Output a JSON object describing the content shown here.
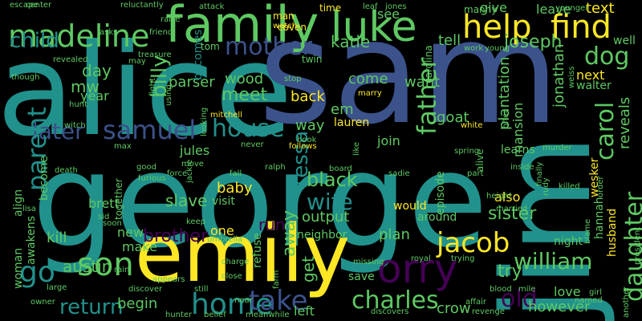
{
  "wordcloud": {
    "background": "#000000",
    "palette": [
      "#440154",
      "#3b528b",
      "#21918c",
      "#5ec962",
      "#fde725",
      "#2a788e",
      "#35b779"
    ],
    "words": [
      {
        "text": "alice"
      },
      {
        "text": "sam"
      },
      {
        "text": "george"
      },
      {
        "text": "family"
      },
      {
        "text": "emily"
      },
      {
        "text": "jim"
      },
      {
        "text": "luke"
      },
      {
        "text": "help"
      },
      {
        "text": "find"
      },
      {
        "text": "madeline"
      },
      {
        "text": "child"
      },
      {
        "text": "mother"
      },
      {
        "text": "dog"
      },
      {
        "text": "joseph"
      },
      {
        "text": "katie"
      },
      {
        "text": "billy"
      },
      {
        "text": "samuel"
      },
      {
        "text": "later"
      },
      {
        "text": "house"
      },
      {
        "text": "father"
      },
      {
        "text": "daughter"
      },
      {
        "text": "carol"
      },
      {
        "text": "son"
      },
      {
        "text": "home"
      },
      {
        "text": "take"
      },
      {
        "text": "orry"
      },
      {
        "text": "charles"
      },
      {
        "text": "jacob"
      },
      {
        "text": "william"
      },
      {
        "text": "old"
      },
      {
        "text": "return"
      },
      {
        "text": "parent"
      },
      {
        "text": "wife"
      },
      {
        "text": "tessa"
      },
      {
        "text": "black"
      },
      {
        "text": "go"
      },
      {
        "text": "brother"
      },
      {
        "text": "sister"
      },
      {
        "text": "try"
      },
      {
        "text": "text"
      },
      {
        "text": "give"
      },
      {
        "text": "see"
      },
      {
        "text": "tell"
      },
      {
        "text": "leave"
      },
      {
        "text": "next"
      },
      {
        "text": "back"
      },
      {
        "text": "meet"
      },
      {
        "text": "wood"
      },
      {
        "text": "parser"
      },
      {
        "text": "becomes"
      },
      {
        "text": "jonathan"
      },
      {
        "text": "plantation"
      },
      {
        "text": "reveals"
      },
      {
        "text": "slave"
      },
      {
        "text": "baby"
      },
      {
        "text": "kill"
      },
      {
        "text": "austin"
      },
      {
        "text": "begin"
      },
      {
        "text": "however"
      },
      {
        "text": "crow"
      },
      {
        "text": "left"
      },
      {
        "text": "away"
      },
      {
        "text": "output"
      },
      {
        "text": "neighbor"
      },
      {
        "text": "plan"
      },
      {
        "text": "would"
      },
      {
        "text": "around"
      },
      {
        "text": "episode"
      },
      {
        "text": "hannah"
      },
      {
        "text": "wesker"
      },
      {
        "text": "husband"
      },
      {
        "text": "walter"
      },
      {
        "text": "mansion"
      },
      {
        "text": "lauren"
      },
      {
        "text": "join"
      },
      {
        "text": "make"
      },
      {
        "text": "new"
      },
      {
        "text": "run"
      },
      {
        "text": "get"
      },
      {
        "text": "one"
      },
      {
        "text": "jules"
      },
      {
        "text": "brett"
      },
      {
        "text": "together"
      },
      {
        "text": "become"
      },
      {
        "text": "align"
      },
      {
        "text": "woman"
      },
      {
        "text": "awakens"
      },
      {
        "text": "day"
      },
      {
        "text": "mw"
      },
      {
        "text": "year"
      },
      {
        "text": "way"
      },
      {
        "text": "em"
      },
      {
        "text": "want"
      },
      {
        "text": "come"
      },
      {
        "text": "goat"
      },
      {
        "text": "learns"
      },
      {
        "text": "also"
      },
      {
        "text": "night"
      },
      {
        "text": "love"
      },
      {
        "text": "save"
      },
      {
        "text": "well"
      },
      {
        "text": "visit"
      },
      {
        "text": "refuse"
      },
      {
        "text": "carolina"
      },
      {
        "text": "manny"
      },
      {
        "text": "time"
      },
      {
        "text": "man"
      },
      {
        "text": "coven"
      },
      {
        "text": "twin"
      },
      {
        "text": "tom"
      },
      {
        "text": "center"
      },
      {
        "text": "reluctantly"
      },
      {
        "text": "attack"
      },
      {
        "text": "leaf"
      },
      {
        "text": "jones"
      },
      {
        "text": "younger"
      },
      {
        "text": "escape"
      },
      {
        "text": "raise"
      },
      {
        "text": "friend"
      },
      {
        "text": "asks"
      },
      {
        "text": "watch"
      },
      {
        "text": "revealed"
      },
      {
        "text": "treasure"
      },
      {
        "text": "though"
      },
      {
        "text": "hunt"
      },
      {
        "text": "mitchell"
      },
      {
        "text": "witch"
      },
      {
        "text": "fight"
      },
      {
        "text": "using"
      },
      {
        "text": "stop"
      },
      {
        "text": "marry"
      },
      {
        "text": "work"
      },
      {
        "text": "young"
      },
      {
        "text": "max"
      },
      {
        "text": "good"
      },
      {
        "text": "death"
      },
      {
        "text": "lisa"
      },
      {
        "text": "never"
      },
      {
        "text": "follows"
      },
      {
        "text": "book"
      },
      {
        "text": "ralph"
      },
      {
        "text": "force"
      },
      {
        "text": "fall"
      },
      {
        "text": "board"
      },
      {
        "text": "spring"
      },
      {
        "text": "sadie"
      },
      {
        "text": "part"
      },
      {
        "text": "inside"
      },
      {
        "text": "killed"
      },
      {
        "text": "height"
      },
      {
        "text": "married"
      },
      {
        "text": "murder"
      },
      {
        "text": "alive"
      },
      {
        "text": "blood"
      },
      {
        "text": "blame"
      },
      {
        "text": "president"
      },
      {
        "text": "another"
      },
      {
        "text": "rain"
      },
      {
        "text": "keep"
      },
      {
        "text": "umbrella"
      },
      {
        "text": "large"
      },
      {
        "text": "owner"
      },
      {
        "text": "discover"
      },
      {
        "text": "still"
      },
      {
        "text": "hunter"
      },
      {
        "text": "belief"
      },
      {
        "text": "meanwhile"
      },
      {
        "text": "near"
      },
      {
        "text": "discovers"
      },
      {
        "text": "close"
      },
      {
        "text": "missing"
      },
      {
        "text": "royal"
      },
      {
        "text": "trying"
      },
      {
        "text": "affair"
      },
      {
        "text": "revenge"
      },
      {
        "text": "mile"
      },
      {
        "text": "named"
      },
      {
        "text": "girl"
      },
      {
        "text": "white"
      },
      {
        "text": "offer"
      },
      {
        "text": "finally"
      },
      {
        "text": "weiss"
      },
      {
        "text": "order"
      },
      {
        "text": "rudy"
      },
      {
        "text": "farm"
      },
      {
        "text": "appears"
      },
      {
        "text": "sid"
      },
      {
        "text": "soon"
      },
      {
        "text": "may"
      },
      {
        "text": "looking"
      },
      {
        "text": "like"
      },
      {
        "text": "move"
      },
      {
        "text": "jackie"
      },
      {
        "text": "furious"
      },
      {
        "text": "charge"
      }
    ]
  }
}
